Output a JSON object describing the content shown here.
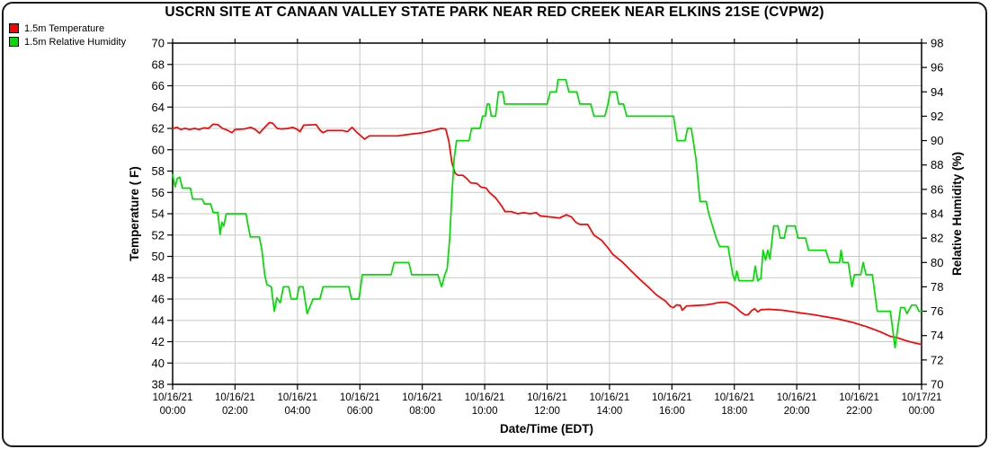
{
  "title": "USCRN SITE AT CANAAN VALLEY STATE PARK NEAR RED CREEK NEAR ELKINS 21SE (CVPW2)",
  "legend": {
    "items": [
      {
        "label": "1.5m Temperature",
        "color": "#ff0000"
      },
      {
        "label": "1.5m Relative Humidity",
        "color": "#00dd00"
      }
    ]
  },
  "chart_data": {
    "type": "line",
    "title": "USCRN SITE AT CANAAN VALLEY STATE PARK NEAR RED CREEK NEAR ELKINS 21SE (CVPW2)",
    "xlabel": "Date/Time (EDT)",
    "grid": true,
    "grid_color": "#c8c8c8",
    "background": "#ffffff",
    "x_axis": {
      "range_hours": [
        0,
        24
      ],
      "tick_step_hours": 2,
      "ticks": [
        {
          "hour": 0,
          "date": "10/16/21",
          "time": "00:00"
        },
        {
          "hour": 2,
          "date": "10/16/21",
          "time": "02:00"
        },
        {
          "hour": 4,
          "date": "10/16/21",
          "time": "04:00"
        },
        {
          "hour": 6,
          "date": "10/16/21",
          "time": "06:00"
        },
        {
          "hour": 8,
          "date": "10/16/21",
          "time": "08:00"
        },
        {
          "hour": 10,
          "date": "10/16/21",
          "time": "10:00"
        },
        {
          "hour": 12,
          "date": "10/16/21",
          "time": "12:00"
        },
        {
          "hour": 14,
          "date": "10/16/21",
          "time": "14:00"
        },
        {
          "hour": 16,
          "date": "10/16/21",
          "time": "16:00"
        },
        {
          "hour": 18,
          "date": "10/16/21",
          "time": "18:00"
        },
        {
          "hour": 20,
          "date": "10/16/21",
          "time": "20:00"
        },
        {
          "hour": 22,
          "date": "10/16/21",
          "time": "22:00"
        },
        {
          "hour": 24,
          "date": "10/17/21",
          "time": "00:00"
        }
      ]
    },
    "y_left": {
      "label": "Temperature ( F)",
      "min": 38,
      "max": 70,
      "tick_step": 2,
      "ticks": [
        38,
        40,
        42,
        44,
        46,
        48,
        50,
        52,
        54,
        56,
        58,
        60,
        62,
        64,
        66,
        68,
        70
      ]
    },
    "y_right": {
      "label": "Relative Humidity (%)",
      "min": 70,
      "max": 98,
      "tick_step": 2,
      "ticks": [
        70,
        72,
        74,
        76,
        78,
        80,
        82,
        84,
        86,
        88,
        90,
        92,
        94,
        96,
        98
      ]
    },
    "series": [
      {
        "name": "1.5m Temperature",
        "axis": "left",
        "color": "#ff0000",
        "units": "F",
        "points": [
          [
            0,
            62.0
          ],
          [
            0.15,
            62.1
          ],
          [
            0.25,
            61.9
          ],
          [
            0.4,
            62.0
          ],
          [
            0.55,
            61.9
          ],
          [
            0.7,
            62.0
          ],
          [
            0.85,
            61.9
          ],
          [
            1.0,
            62.05
          ],
          [
            1.15,
            62.0
          ],
          [
            1.3,
            62.4
          ],
          [
            1.45,
            62.35
          ],
          [
            1.6,
            62.0
          ],
          [
            1.75,
            61.85
          ],
          [
            1.9,
            61.6
          ],
          [
            2.0,
            61.9
          ],
          [
            2.3,
            61.95
          ],
          [
            2.5,
            62.1
          ],
          [
            2.65,
            61.9
          ],
          [
            2.78,
            61.55
          ],
          [
            2.95,
            62.1
          ],
          [
            3.1,
            62.55
          ],
          [
            3.2,
            62.5
          ],
          [
            3.35,
            62.0
          ],
          [
            3.5,
            61.95
          ],
          [
            3.7,
            62.0
          ],
          [
            3.85,
            62.1
          ],
          [
            4.0,
            61.9
          ],
          [
            4.08,
            61.7
          ],
          [
            4.2,
            62.3
          ],
          [
            4.6,
            62.35
          ],
          [
            4.72,
            61.85
          ],
          [
            4.82,
            61.6
          ],
          [
            4.95,
            61.8
          ],
          [
            5.45,
            61.8
          ],
          [
            5.6,
            61.7
          ],
          [
            5.75,
            62.1
          ],
          [
            5.88,
            61.7
          ],
          [
            6.05,
            61.25
          ],
          [
            6.15,
            61.0
          ],
          [
            6.3,
            61.3
          ],
          [
            7.2,
            61.3
          ],
          [
            7.6,
            61.45
          ],
          [
            8.0,
            61.6
          ],
          [
            8.4,
            61.85
          ],
          [
            8.6,
            62.0
          ],
          [
            8.75,
            61.95
          ],
          [
            8.85,
            60.8
          ],
          [
            8.95,
            58.8
          ],
          [
            9.05,
            57.8
          ],
          [
            9.15,
            57.6
          ],
          [
            9.3,
            57.6
          ],
          [
            9.42,
            57.3
          ],
          [
            9.55,
            56.9
          ],
          [
            9.75,
            56.85
          ],
          [
            9.88,
            56.5
          ],
          [
            10.05,
            56.4
          ],
          [
            10.15,
            56.0
          ],
          [
            10.35,
            55.5
          ],
          [
            10.55,
            54.7
          ],
          [
            10.65,
            54.2
          ],
          [
            10.85,
            54.2
          ],
          [
            11.05,
            54.0
          ],
          [
            11.25,
            54.1
          ],
          [
            11.45,
            54.0
          ],
          [
            11.65,
            54.1
          ],
          [
            11.78,
            53.8
          ],
          [
            12.1,
            53.7
          ],
          [
            12.4,
            53.6
          ],
          [
            12.62,
            53.9
          ],
          [
            12.78,
            53.7
          ],
          [
            12.92,
            53.2
          ],
          [
            13.05,
            53.0
          ],
          [
            13.3,
            53.0
          ],
          [
            13.5,
            52.0
          ],
          [
            13.75,
            51.5
          ],
          [
            13.95,
            50.8
          ],
          [
            14.1,
            50.2
          ],
          [
            14.4,
            49.5
          ],
          [
            14.67,
            48.7
          ],
          [
            14.95,
            47.9
          ],
          [
            15.25,
            47.1
          ],
          [
            15.5,
            46.4
          ],
          [
            15.8,
            45.8
          ],
          [
            15.95,
            45.3
          ],
          [
            16.05,
            45.2
          ],
          [
            16.15,
            45.45
          ],
          [
            16.27,
            45.4
          ],
          [
            16.33,
            44.95
          ],
          [
            16.47,
            45.35
          ],
          [
            16.8,
            45.4
          ],
          [
            17.1,
            45.45
          ],
          [
            17.3,
            45.55
          ],
          [
            17.45,
            45.65
          ],
          [
            17.6,
            45.7
          ],
          [
            17.75,
            45.7
          ],
          [
            17.9,
            45.5
          ],
          [
            18.05,
            45.2
          ],
          [
            18.2,
            44.8
          ],
          [
            18.35,
            44.5
          ],
          [
            18.45,
            44.55
          ],
          [
            18.55,
            44.9
          ],
          [
            18.65,
            45.1
          ],
          [
            18.75,
            44.8
          ],
          [
            18.85,
            45.0
          ],
          [
            19.1,
            45.05
          ],
          [
            19.3,
            45.0
          ],
          [
            19.55,
            44.95
          ],
          [
            19.8,
            44.85
          ],
          [
            20.1,
            44.7
          ],
          [
            20.5,
            44.55
          ],
          [
            20.9,
            44.35
          ],
          [
            21.3,
            44.15
          ],
          [
            21.8,
            43.8
          ],
          [
            22.25,
            43.4
          ],
          [
            22.7,
            42.9
          ],
          [
            23.0,
            42.5
          ],
          [
            23.2,
            42.4
          ],
          [
            23.5,
            42.1
          ],
          [
            23.75,
            41.9
          ],
          [
            24.0,
            41.75
          ]
        ]
      },
      {
        "name": "1.5m Relative Humidity",
        "axis": "right",
        "color": "#00dd00",
        "units": "%",
        "points": [
          [
            0,
            87.2
          ],
          [
            0.08,
            86.2
          ],
          [
            0.15,
            86.9
          ],
          [
            0.23,
            87.0
          ],
          [
            0.31,
            86.1
          ],
          [
            0.57,
            86.1
          ],
          [
            0.64,
            85.2
          ],
          [
            0.95,
            85.2
          ],
          [
            1.02,
            84.8
          ],
          [
            1.22,
            84.8
          ],
          [
            1.3,
            84.1
          ],
          [
            1.45,
            84.1
          ],
          [
            1.52,
            82.3
          ],
          [
            1.58,
            83.3
          ],
          [
            1.64,
            83.0
          ],
          [
            1.72,
            84.0
          ],
          [
            2.35,
            84.0
          ],
          [
            2.42,
            83.0
          ],
          [
            2.49,
            82.1
          ],
          [
            2.78,
            82.1
          ],
          [
            2.86,
            81.0
          ],
          [
            2.95,
            79.0
          ],
          [
            3.02,
            78.2
          ],
          [
            3.16,
            78.0
          ],
          [
            3.26,
            76.0
          ],
          [
            3.34,
            77.1
          ],
          [
            3.45,
            76.7
          ],
          [
            3.55,
            78.0
          ],
          [
            3.72,
            78.0
          ],
          [
            3.8,
            77.0
          ],
          [
            3.98,
            77.0
          ],
          [
            4.05,
            78.0
          ],
          [
            4.18,
            78.0
          ],
          [
            4.31,
            75.8
          ],
          [
            4.42,
            76.5
          ],
          [
            4.5,
            77.0
          ],
          [
            4.72,
            77.0
          ],
          [
            4.82,
            78.0
          ],
          [
            5.65,
            78.0
          ],
          [
            5.73,
            77.0
          ],
          [
            5.97,
            77.0
          ],
          [
            6.08,
            79.0
          ],
          [
            7.0,
            79.0
          ],
          [
            7.1,
            80.0
          ],
          [
            7.57,
            80.0
          ],
          [
            7.66,
            79.0
          ],
          [
            8.5,
            79.0
          ],
          [
            8.62,
            78.0
          ],
          [
            8.72,
            79.0
          ],
          [
            8.8,
            79.5
          ],
          [
            8.88,
            82.0
          ],
          [
            8.95,
            85.5
          ],
          [
            9.02,
            88.5
          ],
          [
            9.1,
            90.0
          ],
          [
            9.5,
            90.0
          ],
          [
            9.58,
            91.0
          ],
          [
            9.85,
            91.0
          ],
          [
            9.93,
            92.0
          ],
          [
            10.02,
            92.0
          ],
          [
            10.08,
            93.0
          ],
          [
            10.15,
            93.0
          ],
          [
            10.21,
            92.0
          ],
          [
            10.35,
            92.0
          ],
          [
            10.44,
            94.0
          ],
          [
            10.58,
            94.0
          ],
          [
            10.64,
            93.0
          ],
          [
            12.0,
            93.0
          ],
          [
            12.1,
            94.0
          ],
          [
            12.3,
            94.0
          ],
          [
            12.35,
            95.0
          ],
          [
            12.6,
            95.0
          ],
          [
            12.7,
            94.0
          ],
          [
            12.95,
            94.0
          ],
          [
            13.05,
            93.0
          ],
          [
            13.4,
            93.0
          ],
          [
            13.5,
            92.0
          ],
          [
            13.85,
            92.0
          ],
          [
            13.95,
            93.0
          ],
          [
            14.02,
            94.0
          ],
          [
            14.22,
            94.0
          ],
          [
            14.3,
            93.0
          ],
          [
            14.45,
            93.0
          ],
          [
            14.55,
            92.0
          ],
          [
            16.05,
            92.0
          ],
          [
            16.17,
            90.0
          ],
          [
            16.42,
            90.0
          ],
          [
            16.5,
            91.0
          ],
          [
            16.62,
            91.0
          ],
          [
            16.77,
            88.5
          ],
          [
            16.9,
            85.0
          ],
          [
            17.1,
            85.0
          ],
          [
            17.18,
            84.0
          ],
          [
            17.42,
            82.0
          ],
          [
            17.53,
            81.3
          ],
          [
            17.8,
            81.3
          ],
          [
            17.95,
            79.0
          ],
          [
            18.02,
            78.5
          ],
          [
            18.08,
            79.3
          ],
          [
            18.15,
            78.5
          ],
          [
            18.6,
            78.5
          ],
          [
            18.67,
            79.7
          ],
          [
            18.75,
            78.5
          ],
          [
            18.85,
            78.7
          ],
          [
            18.92,
            81.0
          ],
          [
            19.0,
            80.2
          ],
          [
            19.07,
            81.0
          ],
          [
            19.14,
            80.3
          ],
          [
            19.26,
            83.0
          ],
          [
            19.4,
            83.0
          ],
          [
            19.47,
            82.0
          ],
          [
            19.6,
            82.0
          ],
          [
            19.68,
            83.0
          ],
          [
            19.95,
            83.0
          ],
          [
            20.04,
            82.0
          ],
          [
            20.28,
            82.0
          ],
          [
            20.38,
            81.0
          ],
          [
            20.93,
            81.0
          ],
          [
            21.06,
            80.0
          ],
          [
            21.37,
            80.0
          ],
          [
            21.42,
            81.0
          ],
          [
            21.48,
            80.0
          ],
          [
            21.65,
            80.0
          ],
          [
            21.77,
            78.0
          ],
          [
            21.85,
            79.0
          ],
          [
            22.05,
            79.0
          ],
          [
            22.13,
            80.0
          ],
          [
            22.22,
            79.0
          ],
          [
            22.42,
            79.0
          ],
          [
            22.58,
            76.0
          ],
          [
            23.0,
            76.0
          ],
          [
            23.15,
            73.0
          ],
          [
            23.33,
            76.3
          ],
          [
            23.45,
            76.3
          ],
          [
            23.53,
            75.8
          ],
          [
            23.68,
            76.5
          ],
          [
            23.82,
            76.5
          ],
          [
            23.92,
            76.0
          ],
          [
            24.0,
            76.0
          ]
        ]
      }
    ]
  }
}
